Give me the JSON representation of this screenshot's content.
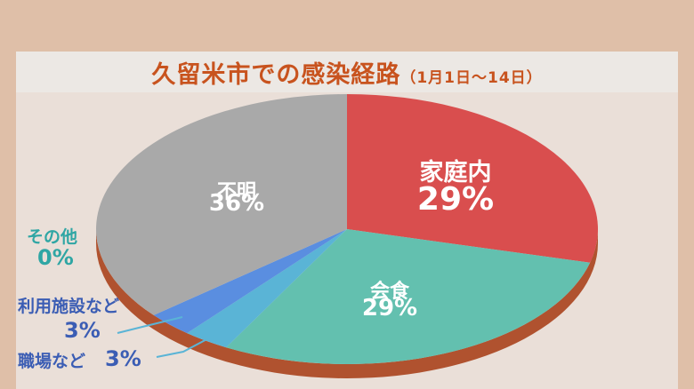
{
  "chart_data": {
    "type": "pie",
    "title": "久留米市での感染経路",
    "subtitle": "（1月1日〜14日）",
    "slices": [
      {
        "name": "家庭内",
        "value": 29,
        "display": "29%",
        "color": "#d94e4e"
      },
      {
        "name": "会食",
        "value": 29,
        "display": "29%",
        "color": "#63c0af"
      },
      {
        "name": "職場など",
        "value": 3,
        "display": "3%",
        "color": "#5ab4d6"
      },
      {
        "name": "利用施設など",
        "value": 3,
        "display": "3%",
        "color": "#5a8ee0"
      },
      {
        "name": "その他",
        "value": 0,
        "display": "0%",
        "color": "#4fb7a8"
      },
      {
        "name": "不明",
        "value": 36,
        "display": "36%",
        "color": "#a9a9a9"
      }
    ],
    "colors": {
      "title": "#c8531e",
      "side": "#b0522f",
      "outside_label_teal": "#2fa6a4",
      "outside_label_blue": "#3b5db4"
    }
  }
}
